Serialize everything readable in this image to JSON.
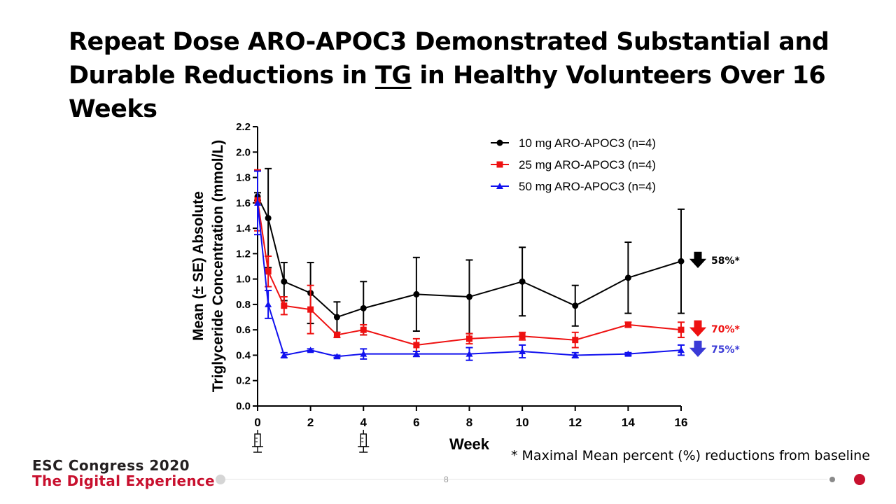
{
  "slide": {
    "title_part1": "Repeat Dose ARO-APOC3 Demonstrated Substantial and Durable Reductions in ",
    "title_underlined": "TG",
    "title_part2": " in Healthy Volunteers Over 16 Weeks",
    "footnote": "* Maximal Mean percent (%) reductions from baseline",
    "brand_line1": "ESC Congress 2020",
    "brand_line2": "The Digital Experience",
    "page_number": "8",
    "colors": {
      "brand_red": "#c8102e"
    }
  },
  "chart_data": {
    "type": "line",
    "title": "",
    "xlabel": "Week",
    "ylabel_line1": "Mean (± SE) Absolute",
    "ylabel_line2": "Triglyceride Concentration (mmol/L)",
    "xlim": [
      0,
      16
    ],
    "ylim": [
      0,
      2.2
    ],
    "x_ticks": [
      0,
      2,
      4,
      6,
      8,
      10,
      12,
      14,
      16
    ],
    "y_ticks": [
      0.0,
      0.2,
      0.4,
      0.6,
      0.8,
      1.0,
      1.2,
      1.4,
      1.6,
      1.8,
      2.0,
      2.2
    ],
    "x_tick_labels": [
      "0",
      "2",
      "4",
      "6",
      "8",
      "10",
      "12",
      "14",
      "16"
    ],
    "y_tick_labels": [
      "0.0",
      "0.2",
      "0.4",
      "0.6",
      "0.8",
      "1.0",
      "1.2",
      "1.4",
      "1.6",
      "1.8",
      "2.0",
      "2.2"
    ],
    "grid": false,
    "legend_position": "top-right",
    "dose_markers_x": [
      0,
      4
    ],
    "dose_marker_icon": "syringe-icon",
    "series": [
      {
        "name": "10 mg ARO-APOC3 (n=4)",
        "color": "#000000",
        "marker": "circle",
        "x": [
          0,
          0.4,
          1,
          2,
          3,
          4,
          6,
          8,
          10,
          12,
          14,
          16
        ],
        "y": [
          1.65,
          1.48,
          0.98,
          0.89,
          0.7,
          0.77,
          0.88,
          0.86,
          0.98,
          0.79,
          1.01,
          1.14
        ],
        "err": [
          0.03,
          0.39,
          0.15,
          0.24,
          0.12,
          0.21,
          0.29,
          0.29,
          0.27,
          0.16,
          0.28,
          0.41
        ],
        "annotation": "58%*"
      },
      {
        "name": "25 mg ARO-APOC3 (n=4)",
        "color": "#ee1111",
        "marker": "square",
        "x": [
          0,
          0.4,
          1,
          2,
          3,
          4,
          6,
          8,
          10,
          12,
          14,
          16
        ],
        "y": [
          1.62,
          1.06,
          0.79,
          0.76,
          0.56,
          0.6,
          0.48,
          0.53,
          0.55,
          0.52,
          0.64,
          0.6
        ],
        "err": [
          0.24,
          0.12,
          0.07,
          0.19,
          0.02,
          0.04,
          0.05,
          0.04,
          0.03,
          0.06,
          0.02,
          0.06
        ],
        "annotation": "70%*"
      },
      {
        "name": "50 mg ARO-APOC3 (n=4)",
        "color": "#1111ee",
        "marker": "triangle",
        "x": [
          0,
          0.4,
          1,
          2,
          3,
          4,
          6,
          8,
          10,
          12,
          14,
          16
        ],
        "y": [
          1.6,
          0.8,
          0.4,
          0.44,
          0.39,
          0.41,
          0.41,
          0.41,
          0.43,
          0.4,
          0.41,
          0.44
        ],
        "err": [
          0.25,
          0.11,
          0.02,
          0.01,
          0.01,
          0.04,
          0.02,
          0.05,
          0.05,
          0.02,
          0.01,
          0.04
        ],
        "annotation": "75%*"
      }
    ]
  }
}
